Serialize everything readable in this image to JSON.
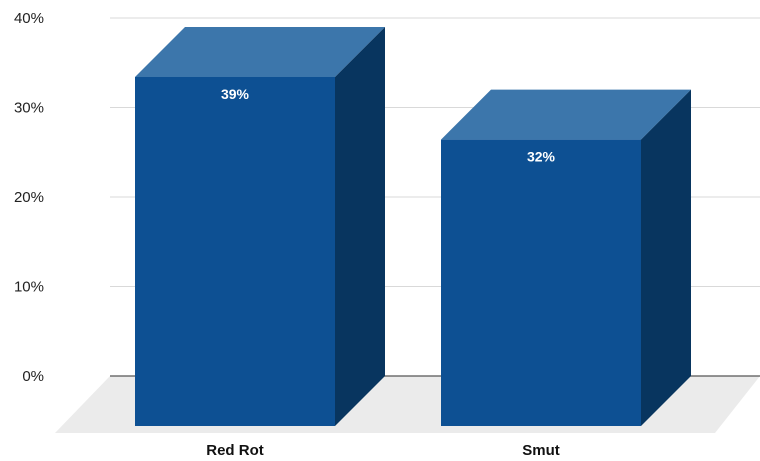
{
  "chart_data": {
    "type": "bar",
    "categories": [
      "Red Rot",
      "Smut"
    ],
    "values": [
      39,
      32
    ],
    "value_labels": [
      "39%",
      "32%"
    ],
    "y_ticks": [
      0,
      10,
      20,
      30,
      40
    ],
    "y_tick_labels": [
      "0%",
      "10%",
      "20%",
      "30%",
      "40%"
    ],
    "ylim": [
      0,
      40
    ],
    "title": "",
    "xlabel": "",
    "ylabel": "",
    "grid": true,
    "style": "3d",
    "colors": {
      "bar_front": "#0d5093",
      "bar_top": "#3c76ab",
      "bar_side": "#08355f",
      "floor": "#ebebeb",
      "grid": "#d9d9d9",
      "axis": "#555555"
    }
  }
}
